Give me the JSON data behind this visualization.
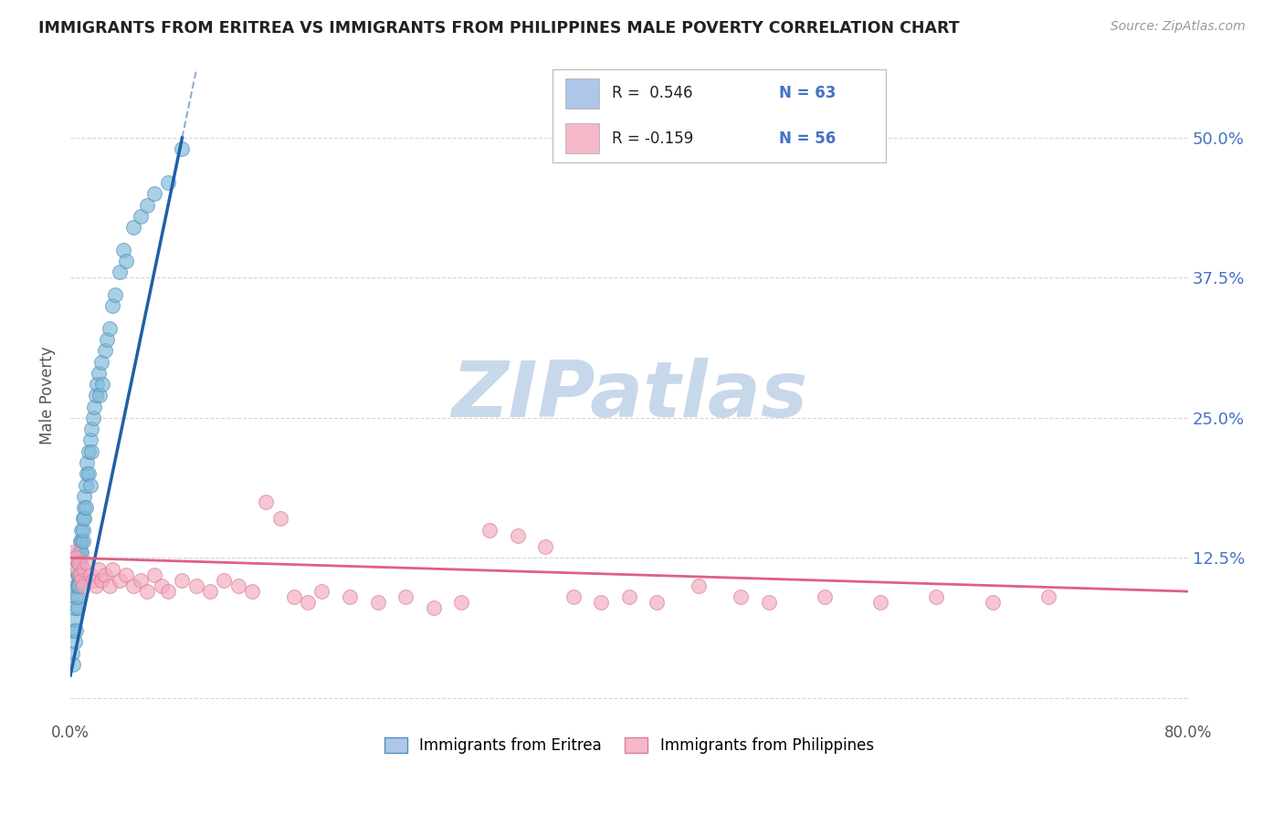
{
  "title": "IMMIGRANTS FROM ERITREA VS IMMIGRANTS FROM PHILIPPINES MALE POVERTY CORRELATION CHART",
  "source": "Source: ZipAtlas.com",
  "ylabel": "Male Poverty",
  "xlim": [
    0,
    0.8
  ],
  "ylim": [
    -0.02,
    0.56
  ],
  "ytick_positions": [
    0.0,
    0.125,
    0.25,
    0.375,
    0.5
  ],
  "ytick_labels_right": [
    "",
    "12.5%",
    "25.0%",
    "37.5%",
    "50.0%"
  ],
  "legend_color1": "#aec6e8",
  "legend_color2": "#f4b8c8",
  "series1_color": "#7db8d8",
  "series1_edge": "#5590bb",
  "series2_color": "#f4a8bc",
  "series2_edge": "#d4809a",
  "line1_color": "#2060a8",
  "line2_color": "#e06080",
  "background_color": "#ffffff",
  "watermark_color": "#c8d8eb",
  "grid_color": "#cccccc",
  "R1": 0.546,
  "N1": 63,
  "R2": -0.159,
  "N2": 56,
  "eritrea_x": [
    0.001,
    0.002,
    0.002,
    0.003,
    0.003,
    0.003,
    0.004,
    0.004,
    0.004,
    0.005,
    0.005,
    0.005,
    0.005,
    0.005,
    0.006,
    0.006,
    0.006,
    0.006,
    0.007,
    0.007,
    0.007,
    0.007,
    0.008,
    0.008,
    0.008,
    0.009,
    0.009,
    0.009,
    0.01,
    0.01,
    0.01,
    0.011,
    0.011,
    0.012,
    0.012,
    0.013,
    0.013,
    0.014,
    0.014,
    0.015,
    0.015,
    0.016,
    0.017,
    0.018,
    0.019,
    0.02,
    0.021,
    0.022,
    0.023,
    0.025,
    0.026,
    0.028,
    0.03,
    0.032,
    0.035,
    0.038,
    0.04,
    0.045,
    0.05,
    0.055,
    0.06,
    0.07,
    0.08
  ],
  "eritrea_y": [
    0.04,
    0.06,
    0.03,
    0.07,
    0.05,
    0.08,
    0.09,
    0.06,
    0.1,
    0.11,
    0.08,
    0.12,
    0.1,
    0.09,
    0.13,
    0.11,
    0.12,
    0.1,
    0.14,
    0.13,
    0.11,
    0.12,
    0.15,
    0.13,
    0.14,
    0.16,
    0.14,
    0.15,
    0.17,
    0.18,
    0.16,
    0.19,
    0.17,
    0.2,
    0.21,
    0.22,
    0.2,
    0.23,
    0.19,
    0.24,
    0.22,
    0.25,
    0.26,
    0.27,
    0.28,
    0.29,
    0.27,
    0.3,
    0.28,
    0.31,
    0.32,
    0.33,
    0.35,
    0.36,
    0.38,
    0.4,
    0.39,
    0.42,
    0.43,
    0.44,
    0.45,
    0.46,
    0.49
  ],
  "philippines_x": [
    0.002,
    0.004,
    0.005,
    0.006,
    0.007,
    0.008,
    0.009,
    0.01,
    0.012,
    0.014,
    0.016,
    0.018,
    0.02,
    0.022,
    0.025,
    0.028,
    0.03,
    0.035,
    0.04,
    0.045,
    0.05,
    0.055,
    0.06,
    0.065,
    0.07,
    0.08,
    0.09,
    0.1,
    0.11,
    0.12,
    0.13,
    0.14,
    0.15,
    0.16,
    0.17,
    0.18,
    0.2,
    0.22,
    0.24,
    0.26,
    0.28,
    0.3,
    0.32,
    0.34,
    0.36,
    0.38,
    0.4,
    0.42,
    0.45,
    0.48,
    0.5,
    0.54,
    0.58,
    0.62,
    0.66,
    0.7
  ],
  "philippines_y": [
    0.13,
    0.125,
    0.115,
    0.12,
    0.11,
    0.105,
    0.1,
    0.115,
    0.12,
    0.11,
    0.105,
    0.1,
    0.115,
    0.105,
    0.11,
    0.1,
    0.115,
    0.105,
    0.11,
    0.1,
    0.105,
    0.095,
    0.11,
    0.1,
    0.095,
    0.105,
    0.1,
    0.095,
    0.105,
    0.1,
    0.095,
    0.175,
    0.16,
    0.09,
    0.085,
    0.095,
    0.09,
    0.085,
    0.09,
    0.08,
    0.085,
    0.15,
    0.145,
    0.135,
    0.09,
    0.085,
    0.09,
    0.085,
    0.1,
    0.09,
    0.085,
    0.09,
    0.085,
    0.09,
    0.085,
    0.09
  ],
  "line1_x": [
    0.0,
    0.08
  ],
  "line1_y": [
    0.02,
    0.5
  ],
  "line2_x": [
    0.0,
    0.8
  ],
  "line2_y": [
    0.125,
    0.095
  ]
}
